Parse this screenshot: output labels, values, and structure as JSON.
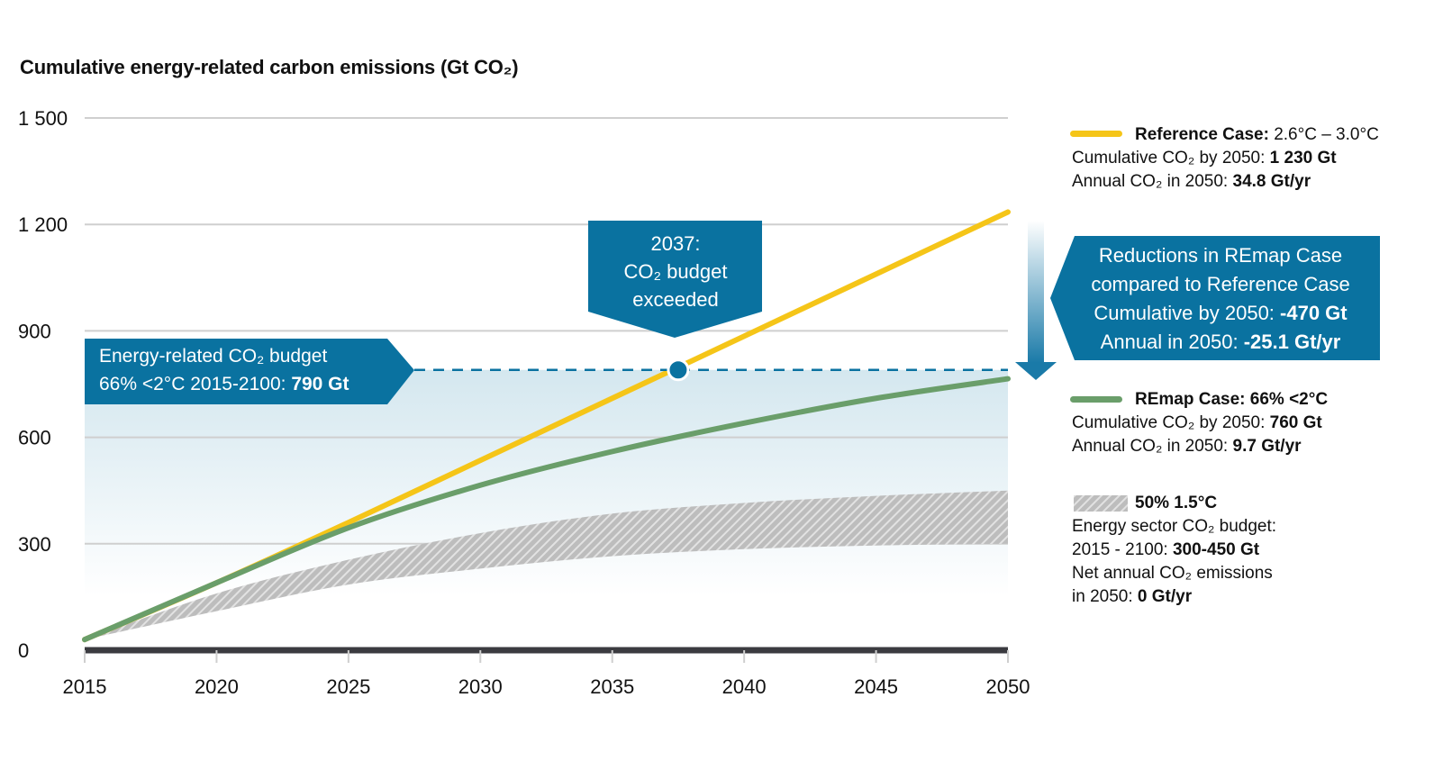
{
  "chart_data": {
    "type": "line",
    "title": "Cumulative energy-related carbon emissions (Gt CO₂)",
    "xlabel": "",
    "ylabel": "Cumulative energy-related carbon emissions (Gt CO₂)",
    "xlim": [
      2015,
      2050
    ],
    "ylim": [
      0,
      1500
    ],
    "grid": true,
    "x_ticks": [
      "2015",
      "2020",
      "2025",
      "2030",
      "2035",
      "2040",
      "2045",
      "2050"
    ],
    "y_ticks": [
      "0",
      "300",
      "600",
      "900",
      "1 200",
      "1 500"
    ],
    "x": [
      2015,
      2020,
      2025,
      2030,
      2035,
      2040,
      2045,
      2050
    ],
    "series": [
      {
        "name": "Reference Case",
        "color": "#f5c518",
        "values": [
          30,
          190,
          360,
          535,
          710,
          885,
          1060,
          1235
        ]
      },
      {
        "name": "REmap Case",
        "color": "#6a9e6a",
        "values": [
          30,
          190,
          345,
          465,
          560,
          640,
          710,
          765
        ]
      }
    ],
    "band": {
      "name": "50% 1.5°C",
      "color": "#bdbdbd",
      "x": [
        2015,
        2020,
        2025,
        2030,
        2035,
        2040,
        2045,
        2050
      ],
      "lower": [
        30,
        110,
        185,
        230,
        265,
        285,
        295,
        300
      ],
      "upper": [
        30,
        160,
        255,
        330,
        385,
        415,
        435,
        450
      ]
    },
    "budget_line": {
      "value": 790,
      "label_line1": "Energy-related CO₂ budget",
      "label_line2_prefix": "66% <2°C 2015-2100: ",
      "label_line2_bold": "790 Gt"
    },
    "crossing_point": {
      "x": 2037.5,
      "y": 790,
      "label_line1": "2037:",
      "label_line2": "CO₂ budget",
      "label_line3": "exceeded"
    },
    "reduction_callout": {
      "line1": "Reductions in REmap Case",
      "line2": "compared to Reference Case",
      "line3_prefix": "Cumulative by 2050: ",
      "line3_bold": "-470 Gt",
      "line4_prefix": "Annual in 2050: ",
      "line4_bold": "-25.1 Gt/yr"
    },
    "legend_placement": "right"
  },
  "legend": {
    "reference": {
      "name_bold": "Reference Case:",
      "name_rest": " 2.6°C – 3.0°C",
      "line2_prefix": "Cumulative CO₂ by 2050: ",
      "line2_bold": "1 230 Gt",
      "line3_prefix": "Annual CO₂ in 2050: ",
      "line3_bold": "34.8 Gt/yr"
    },
    "remap": {
      "name_bold": "REmap Case: 66% <2°C",
      "line2_prefix": "Cumulative CO₂ by 2050: ",
      "line2_bold": "760 Gt",
      "line3_prefix": "Annual CO₂ in 2050: ",
      "line3_bold": "9.7 Gt/yr"
    },
    "band": {
      "name_bold": "50% 1.5°C",
      "line2": "Energy sector CO₂ budget:",
      "line3_prefix": "2015 - 2100: ",
      "line3_bold": "300-450 Gt",
      "line4": "Net annual CO₂ emissions",
      "line5_prefix": "in 2050: ",
      "line5_bold": "0 Gt/yr"
    }
  },
  "colors": {
    "callout": "#0a72a0",
    "reference": "#f5c518",
    "remap": "#6a9e6a",
    "band": "#bdbdbd",
    "axis": "#3b3b40",
    "grid": "#cfcfcf"
  }
}
